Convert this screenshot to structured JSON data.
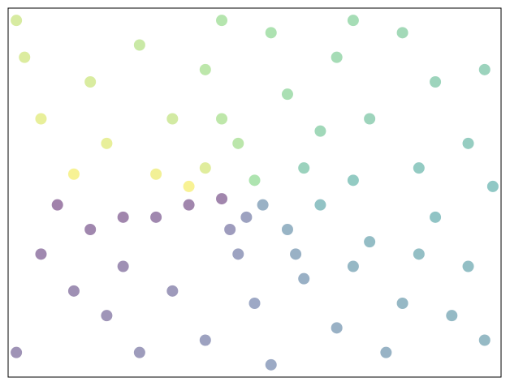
{
  "chart_data": {
    "type": "scatter",
    "colormap": "viridis",
    "alpha": 0.5,
    "clim": [
      -3.14,
      3.14
    ],
    "xlim": [
      -1.5,
      1.5
    ],
    "ylim": [
      -1.5,
      1.5
    ],
    "x": [
      -1.2,
      -1.0,
      -0.8,
      -0.6,
      -0.4,
      -0.2,
      -1.3,
      -0.9,
      -0.5,
      -0.3,
      -0.7,
      -1.1,
      -0.1,
      0.0,
      0.2,
      0.3,
      0.1,
      0.5,
      0.7,
      0.9,
      1.1,
      1.3,
      0.4,
      0.8,
      1.0,
      1.4,
      0.6,
      1.0,
      1.3,
      0.3,
      0.7,
      1.1,
      0.5,
      0.9,
      0.2,
      0.1,
      1.4,
      0.4,
      -0.1,
      -0.3,
      -0.5,
      -0.2,
      -0.7,
      -1.0,
      -0.9,
      -1.3,
      -1.1,
      -0.6,
      -0.3,
      -1.4,
      -0.4,
      0.0,
      0.05,
      -0.15,
      -0.8,
      0.6,
      -0.05,
      1.2,
      -1.45,
      -1.45,
      0.6,
      1.45,
      -0.2,
      0.25
    ],
    "y": [
      -0.1,
      -0.3,
      -0.6,
      -0.2,
      -0.1,
      -0.05,
      -0.5,
      -1.0,
      -0.8,
      -1.2,
      -1.3,
      -0.8,
      -0.5,
      -0.9,
      -0.3,
      -0.7,
      -1.4,
      -1.1,
      -0.4,
      -0.9,
      -0.2,
      -0.6,
      -0.1,
      -1.3,
      -0.5,
      -1.2,
      0.1,
      0.2,
      0.4,
      0.2,
      0.6,
      0.9,
      1.1,
      1.3,
      0.8,
      1.3,
      1.0,
      0.5,
      0.4,
      1.0,
      0.6,
      1.4,
      1.2,
      0.9,
      0.4,
      0.6,
      0.15,
      0.15,
      0.2,
      1.1,
      0.05,
      0.1,
      -0.1,
      -0.3,
      -0.2,
      -0.6,
      -0.2,
      -1.0,
      -1.3,
      1.4,
      1.4,
      0.05,
      0.6,
      -0.5
    ],
    "c": [
      -3.06,
      -2.85,
      -2.5,
      -2.82,
      -2.9,
      -2.9,
      -2.77,
      -2.3,
      -2.13,
      -1.82,
      -2.06,
      -2.51,
      -1.77,
      -1.57,
      -0.98,
      -1.17,
      -1.5,
      -1.14,
      -0.52,
      -0.79,
      -0.18,
      -0.43,
      -0.24,
      -1.02,
      -0.46,
      -0.71,
      0.17,
      0.2,
      0.3,
      0.59,
      0.71,
      0.69,
      1.14,
      0.97,
      1.33,
      1.49,
      0.62,
      0.9,
      1.82,
      1.86,
      2.27,
      1.71,
      2.1,
      2.41,
      2.72,
      2.71,
      3.01,
      2.9,
      2.55,
      2.48,
      3.02,
      1.57,
      -1.11,
      -2.03,
      -2.9,
      -0.79,
      -1.82,
      -0.69,
      -2.41,
      2.37,
      1.17,
      0.03,
      1.89,
      -1.11
    ]
  }
}
